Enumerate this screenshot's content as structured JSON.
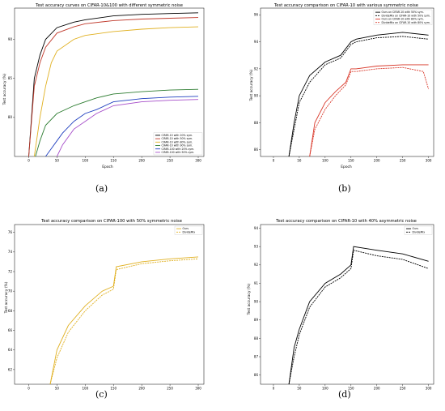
{
  "chart_data": [
    {
      "id": "a",
      "type": "line",
      "caption": "(a)",
      "title": "Test accuracy curves on CIFAR-10&100 with different symmetric noise",
      "xlabel": "Epoch",
      "ylabel": "Test accuracy (%)",
      "xlim": [
        -25,
        310
      ],
      "ylim": [
        75,
        94
      ],
      "xticks": [
        0,
        50,
        100,
        150,
        200,
        250,
        300
      ],
      "yticks": [
        80,
        85,
        90
      ],
      "legend": "bottom-right",
      "series": [
        {
          "name": "CIFAR-10 with 20% sym.",
          "color": "#000000",
          "x": [
            0,
            10,
            20,
            30,
            50,
            80,
            100,
            150,
            200,
            250,
            300
          ],
          "y": [
            75,
            85,
            88,
            90,
            91.5,
            92.2,
            92.5,
            93,
            93.2,
            93.3,
            93.4
          ]
        },
        {
          "name": "CIFAR-10 with 50% sym.",
          "color": "#c0392b",
          "x": [
            0,
            10,
            20,
            30,
            50,
            80,
            100,
            150,
            200,
            250,
            300
          ],
          "y": [
            75,
            84,
            87,
            89,
            90.8,
            91.6,
            92,
            92.4,
            92.6,
            92.7,
            92.8
          ]
        },
        {
          "name": "CIFAR-10 with 80% sym.",
          "color": "#e0b020",
          "x": [
            10,
            20,
            30,
            40,
            50,
            80,
            100,
            150,
            200,
            250,
            300
          ],
          "y": [
            75,
            80,
            84,
            87,
            88.5,
            90,
            90.5,
            91,
            91.3,
            91.5,
            91.6
          ]
        },
        {
          "name": "CIFAR-10 with 90% sym.",
          "color": "#2e7d32",
          "x": [
            12,
            20,
            30,
            50,
            80,
            100,
            120,
            150,
            200,
            250,
            300
          ],
          "y": [
            75,
            77,
            79,
            80.5,
            81.5,
            82,
            82.5,
            83,
            83.3,
            83.5,
            83.6
          ]
        },
        {
          "name": "CIFAR-100 with 20% sym.",
          "color": "#1f3fbf",
          "x": [
            30,
            40,
            50,
            60,
            80,
            100,
            120,
            150,
            200,
            250,
            300
          ],
          "y": [
            75,
            76,
            77,
            78,
            79.5,
            80.5,
            81,
            82,
            82.4,
            82.6,
            82.7
          ]
        },
        {
          "name": "CIFAR-100 with 50% sym.",
          "color": "#a64ec9",
          "x": [
            50,
            60,
            80,
            100,
            120,
            150,
            200,
            250,
            300
          ],
          "y": [
            75,
            76.5,
            78.5,
            79.5,
            80.5,
            81.5,
            82,
            82.2,
            82.3
          ]
        }
      ]
    },
    {
      "id": "b",
      "type": "line",
      "caption": "(b)",
      "title": "Test accuracy comparison on CIFAR-10 with various symmetric noise",
      "xlabel": "Epoch",
      "ylabel": "Test accuracy (%)",
      "xlim": [
        -25,
        310
      ],
      "ylim": [
        85.5,
        96.5
      ],
      "xticks": [
        0,
        50,
        100,
        150,
        200,
        250,
        300
      ],
      "yticks": [
        86,
        88,
        90,
        92,
        94,
        96
      ],
      "legend": "top-right",
      "series": [
        {
          "name": "Ours on CIFAR-10 with 50% sym.",
          "color": "#000000",
          "dash": "",
          "x": [
            30,
            40,
            50,
            70,
            100,
            130,
            150,
            160,
            200,
            250,
            300
          ],
          "y": [
            85.5,
            88,
            90,
            91.5,
            92.5,
            93,
            94,
            94.2,
            94.5,
            94.7,
            94.5
          ]
        },
        {
          "name": "DivideMix on CIFAR-10 with 50% sym.",
          "color": "#000000",
          "dash": "2,1",
          "x": [
            30,
            40,
            50,
            70,
            100,
            130,
            150,
            160,
            200,
            250,
            300
          ],
          "y": [
            85.5,
            87.5,
            89.5,
            91,
            92.3,
            92.8,
            93.8,
            94,
            94.3,
            94.4,
            94.2
          ]
        },
        {
          "name": "Ours on CIFAR-10 with 80% sym.",
          "color": "#d9382a",
          "dash": "",
          "x": [
            70,
            80,
            100,
            120,
            140,
            150,
            160,
            200,
            250,
            300
          ],
          "y": [
            85.5,
            88,
            89.5,
            90.3,
            91,
            92,
            92,
            92.2,
            92.3,
            92.3
          ]
        },
        {
          "name": "DivideMix on CIFAR-10 with 80% sym.",
          "color": "#d9382a",
          "dash": "2,1",
          "x": [
            70,
            80,
            100,
            120,
            140,
            150,
            160,
            200,
            250,
            290,
            300
          ],
          "y": [
            85.5,
            87.5,
            89,
            90,
            90.8,
            91.8,
            91.8,
            92,
            92.1,
            91.8,
            90.5
          ]
        }
      ]
    },
    {
      "id": "c",
      "type": "line",
      "caption": "(c)",
      "title": "Test accuracy comparison on CIFAR-100 with 50% symmetric noise",
      "xlabel": "",
      "ylabel": "Test accuracy (%)",
      "xlim": [
        -25,
        310
      ],
      "ylim": [
        60.5,
        76.8
      ],
      "xticks": [
        0,
        50,
        100,
        150,
        200,
        250,
        300
      ],
      "yticks": [
        62,
        64,
        66,
        68,
        70,
        72,
        74,
        76
      ],
      "legend": "top-right",
      "series": [
        {
          "name": "Ours",
          "color": "#e0b020",
          "dash": "",
          "x": [
            38,
            50,
            70,
            100,
            130,
            150,
            155,
            200,
            250,
            300
          ],
          "y": [
            60.5,
            64,
            66.5,
            68.5,
            70,
            70.5,
            72.5,
            73,
            73.3,
            73.5
          ]
        },
        {
          "name": "DivideMix",
          "color": "#e0b020",
          "dash": "2,1",
          "x": [
            38,
            50,
            70,
            100,
            130,
            150,
            155,
            200,
            250,
            300
          ],
          "y": [
            60.5,
            63.2,
            65.8,
            68,
            69.6,
            70.2,
            72.2,
            72.8,
            73.1,
            73.3
          ]
        }
      ]
    },
    {
      "id": "d",
      "type": "line",
      "caption": "(d)",
      "title": "Test accuracy comparison on CIFAR-10 with 40% asymmetric noise",
      "xlabel": "",
      "ylabel": "Test accuracy (%)",
      "xlim": [
        -25,
        310
      ],
      "ylim": [
        85.5,
        94.2
      ],
      "xticks": [
        0,
        50,
        100,
        150,
        200,
        250,
        300
      ],
      "yticks": [
        86,
        87,
        88,
        89,
        90,
        91,
        92,
        93,
        94
      ],
      "legend": "top-right",
      "series": [
        {
          "name": "Ours",
          "color": "#000000",
          "dash": "",
          "x": [
            30,
            40,
            50,
            70,
            100,
            130,
            150,
            155,
            200,
            250,
            300
          ],
          "y": [
            85.5,
            87.5,
            88.5,
            90,
            91,
            91.5,
            92,
            93,
            92.8,
            92.6,
            92.2
          ]
        },
        {
          "name": "DivideMix",
          "color": "#000000",
          "dash": "2,1",
          "x": [
            30,
            40,
            50,
            70,
            100,
            130,
            150,
            155,
            200,
            250,
            300
          ],
          "y": [
            85.5,
            87,
            88.2,
            89.7,
            90.8,
            91.3,
            91.8,
            92.8,
            92.5,
            92.3,
            91.8
          ]
        }
      ]
    }
  ]
}
